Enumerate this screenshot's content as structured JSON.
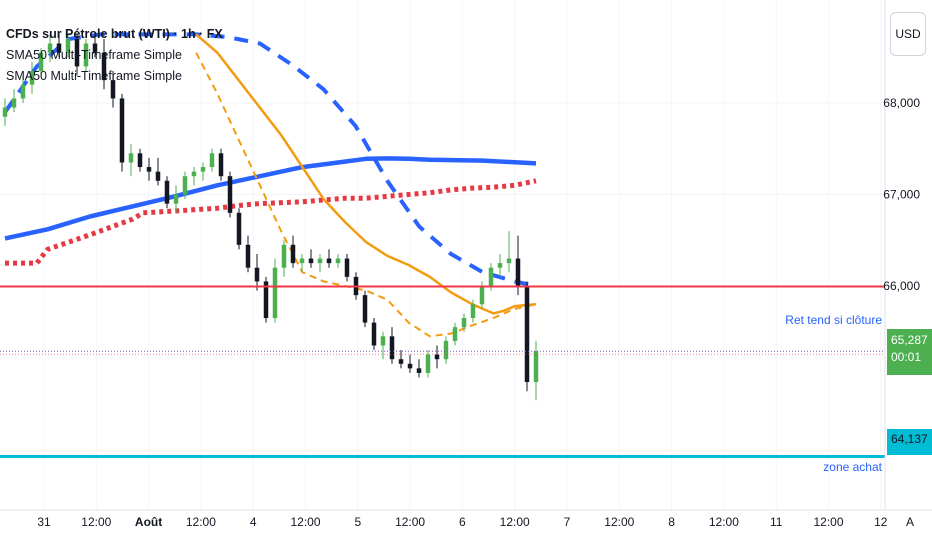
{
  "legend": {
    "title": "CFDs sur Pétrole brut (WTI) · 1h · FX",
    "ind1": "SMA50 Multi-Timeframe Simple",
    "ind2": "SMA50 Multi-Timeframe Simple"
  },
  "currency_button": "USD",
  "last_price": {
    "value": "65,287",
    "countdown": "00:01",
    "color": "#4caf50"
  },
  "zone_price": {
    "value": "64,137",
    "color": "#00bcd4"
  },
  "annotations": {
    "red_line_label": "Ret tend si clôture",
    "cyan_line_label": "zone achat"
  },
  "auto_scale_label": "A",
  "colors": {
    "up": "#4caf50",
    "down": "#131722",
    "sma_blue": "#2962ff",
    "sma_orange": "#f39c12",
    "sma_red_dots": "#e53945",
    "red_line": "#f23645",
    "cyan_line": "#00bcd4",
    "text_blue": "#2962ff"
  },
  "chart_data": {
    "type": "line",
    "y_axis": {
      "ticks": [
        66000,
        67000,
        68000
      ],
      "tick_labels": [
        "66,000",
        "67,000",
        "68,000"
      ]
    },
    "x_axis": {
      "tick_labels": [
        "31",
        "12:00",
        "Août",
        "12:00",
        "4",
        "12:00",
        "5",
        "12:00",
        "6",
        "12:00",
        "7",
        "12:00",
        "8",
        "12:00",
        "11",
        "12:00",
        "12"
      ]
    },
    "horizontal_lines": [
      {
        "name": "Ret tend si clôture",
        "y": 65995
      },
      {
        "name": "zone achat",
        "y": 64137
      }
    ],
    "series": [
      {
        "style": "blue-solid",
        "x": [
          0,
          4,
          8,
          12,
          16,
          20,
          24,
          28,
          32,
          34,
          36,
          38,
          40,
          45,
          50
        ],
        "y": [
          66520,
          66620,
          66760,
          66870,
          66980,
          67100,
          67200,
          67300,
          67360,
          67390,
          67395,
          67390,
          67380,
          67370,
          67340
        ]
      },
      {
        "style": "blue-dashed",
        "x": [
          0,
          3,
          6,
          9,
          12,
          15,
          18,
          21,
          24,
          27,
          30,
          33,
          36,
          39,
          42,
          45,
          48,
          50
        ],
        "y": [
          67900,
          68400,
          68700,
          68750,
          68750,
          68750,
          68750,
          68720,
          68650,
          68420,
          68150,
          67750,
          67150,
          66650,
          66350,
          66150,
          66050,
          66000
        ]
      },
      {
        "style": "red-dotted",
        "x": [
          0,
          3,
          4,
          8,
          12,
          13,
          16,
          20,
          22,
          24,
          28,
          30,
          32,
          34,
          36,
          38,
          40,
          42,
          44,
          46,
          48,
          50
        ],
        "y": [
          66250,
          66250,
          66400,
          66560,
          66730,
          66800,
          66820,
          66850,
          66880,
          66900,
          66920,
          66940,
          66960,
          66960,
          66980,
          67000,
          67020,
          67050,
          67070,
          67080,
          67100,
          67150
        ]
      },
      {
        "style": "orange-solid",
        "x": [
          18,
          20,
          22,
          24,
          26,
          28,
          30,
          32,
          34,
          36,
          38,
          40,
          42,
          44,
          46,
          47,
          48,
          50
        ],
        "y": [
          68750,
          68550,
          68250,
          67950,
          67650,
          67300,
          66950,
          66700,
          66480,
          66330,
          66230,
          66100,
          65930,
          65800,
          65700,
          65730,
          65780,
          65800
        ]
      },
      {
        "style": "orange-dashed",
        "x": [
          18,
          20,
          22,
          24,
          26,
          28,
          30,
          32,
          34,
          36,
          38,
          40,
          42,
          44,
          46,
          48,
          50
        ],
        "y": [
          68550,
          68100,
          67600,
          67100,
          66600,
          66150,
          66050,
          66000,
          65950,
          65850,
          65600,
          65450,
          65480,
          65570,
          65650,
          65750,
          65800
        ]
      }
    ],
    "candles": [
      [
        0,
        67850,
        68050,
        67750,
        67950
      ],
      [
        1,
        67950,
        68150,
        67900,
        68050
      ],
      [
        2,
        68050,
        68300,
        68000,
        68200
      ],
      [
        3,
        68200,
        68450,
        68100,
        68350
      ],
      [
        4,
        68350,
        68600,
        68300,
        68550
      ],
      [
        5,
        68550,
        68750,
        68450,
        68650
      ],
      [
        6,
        68650,
        68760,
        68500,
        68550
      ],
      [
        7,
        68550,
        68750,
        68500,
        68700
      ],
      [
        8,
        68700,
        68760,
        68300,
        68400
      ],
      [
        9,
        68400,
        68700,
        68350,
        68650
      ],
      [
        10,
        68650,
        68760,
        68500,
        68550
      ],
      [
        11,
        68550,
        68700,
        68150,
        68250
      ],
      [
        12,
        68250,
        68350,
        67950,
        68050
      ],
      [
        13,
        68050,
        68100,
        67250,
        67350
      ],
      [
        14,
        67350,
        67550,
        67200,
        67450
      ],
      [
        15,
        67450,
        67500,
        67250,
        67300
      ],
      [
        16,
        67300,
        67400,
        67150,
        67250
      ],
      [
        17,
        67250,
        67400,
        67100,
        67150
      ],
      [
        18,
        67150,
        67200,
        66850,
        66900
      ],
      [
        19,
        66900,
        67100,
        66800,
        67000
      ],
      [
        20,
        67000,
        67250,
        66950,
        67200
      ],
      [
        21,
        67200,
        67300,
        67100,
        67250
      ],
      [
        22,
        67250,
        67350,
        67150,
        67300
      ],
      [
        23,
        67300,
        67500,
        67250,
        67450
      ],
      [
        24,
        67450,
        67500,
        67150,
        67200
      ],
      [
        25,
        67200,
        67250,
        66750,
        66800
      ],
      [
        26,
        66800,
        66850,
        66400,
        66450
      ],
      [
        27,
        66450,
        66550,
        66150,
        66200
      ],
      [
        28,
        66200,
        66350,
        65950,
        66050
      ],
      [
        29,
        66050,
        66100,
        65600,
        65650
      ],
      [
        30,
        65650,
        66300,
        65600,
        66200
      ],
      [
        31,
        66200,
        66500,
        66100,
        66450
      ],
      [
        32,
        66450,
        66550,
        66200,
        66250
      ],
      [
        33,
        66250,
        66350,
        66150,
        66300
      ],
      [
        34,
        66300,
        66400,
        66200,
        66250
      ],
      [
        35,
        66250,
        66350,
        66150,
        66300
      ],
      [
        36,
        66300,
        66400,
        66200,
        66250
      ],
      [
        37,
        66250,
        66350,
        66200,
        66300
      ],
      [
        38,
        66300,
        66350,
        66050,
        66100
      ],
      [
        39,
        66100,
        66150,
        65850,
        65900
      ],
      [
        40,
        65900,
        65950,
        65550,
        65600
      ],
      [
        41,
        65600,
        65650,
        65300,
        65350
      ],
      [
        42,
        65350,
        65500,
        65200,
        65450
      ],
      [
        43,
        65450,
        65550,
        65150,
        65200
      ],
      [
        44,
        65200,
        65300,
        65100,
        65150
      ],
      [
        45,
        65150,
        65250,
        65050,
        65100
      ],
      [
        46,
        65100,
        65200,
        65000,
        65050
      ],
      [
        47,
        65050,
        65300,
        65000,
        65250
      ],
      [
        48,
        65250,
        65350,
        65100,
        65200
      ],
      [
        49,
        65200,
        65450,
        65150,
        65400
      ],
      [
        50,
        65400,
        65600,
        65350,
        65550
      ],
      [
        51,
        65550,
        65700,
        65500,
        65650
      ],
      [
        52,
        65650,
        65850,
        65600,
        65800
      ],
      [
        53,
        65800,
        66050,
        65750,
        66000
      ],
      [
        54,
        66000,
        66250,
        65950,
        66200
      ],
      [
        55,
        66200,
        66350,
        66100,
        66250
      ],
      [
        56,
        66250,
        66600,
        66150,
        66300
      ],
      [
        57,
        66300,
        66550,
        65900,
        66000
      ],
      [
        58,
        66000,
        66050,
        64850,
        64950
      ],
      [
        59,
        64950,
        65400,
        64750,
        65287
      ]
    ]
  }
}
